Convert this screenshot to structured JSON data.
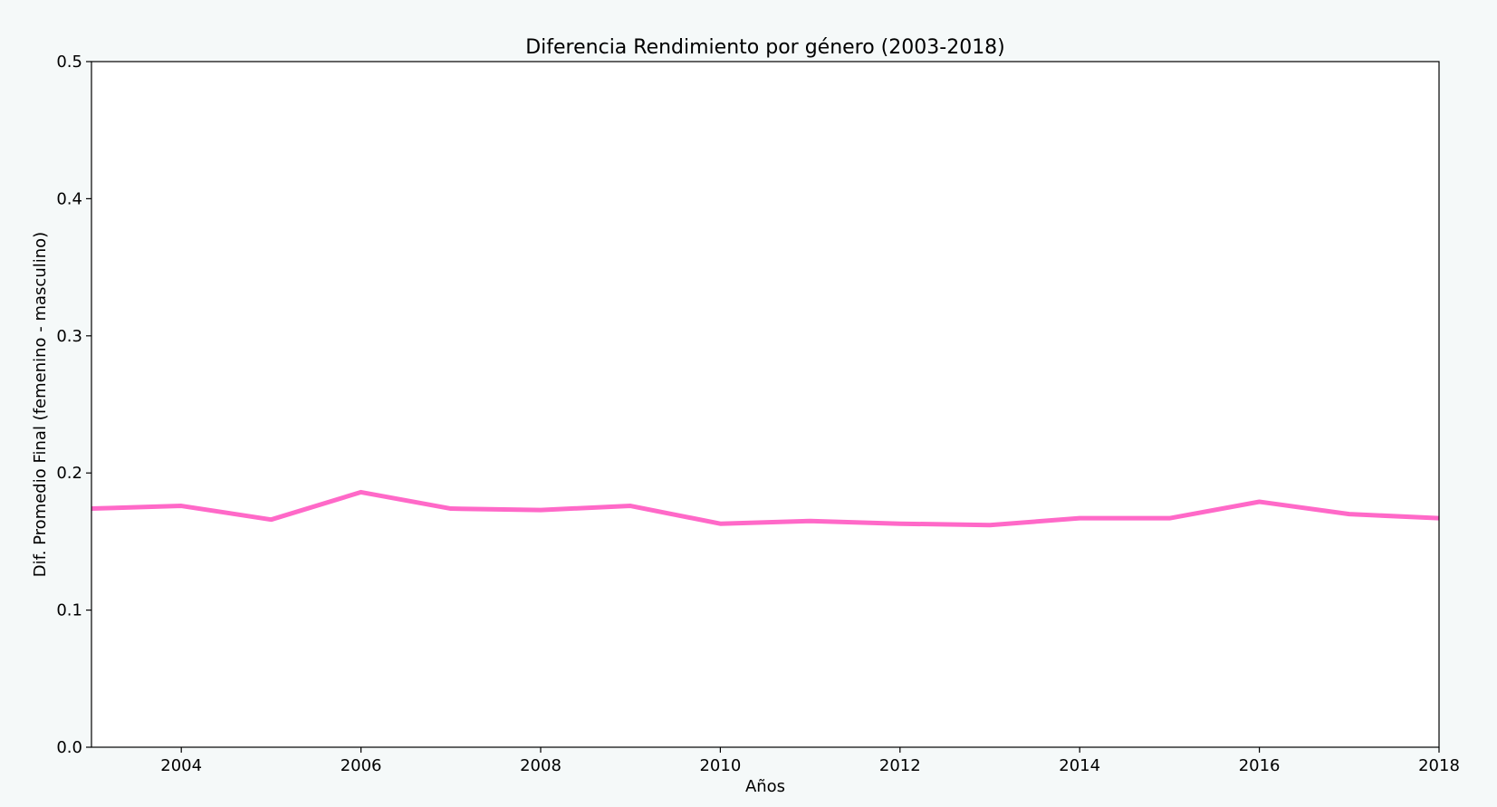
{
  "chart_data": {
    "type": "line",
    "title": "Diferencia Rendimiento por género (2003-2018)",
    "xlabel": "Años",
    "ylabel": "Dif. Promedio Final (femenino - masculino)",
    "xlim": [
      2003,
      2018
    ],
    "ylim": [
      0.0,
      0.5
    ],
    "xticks": [
      2004,
      2006,
      2008,
      2010,
      2012,
      2014,
      2016,
      2018
    ],
    "yticks": [
      0.0,
      0.1,
      0.2,
      0.3,
      0.4,
      0.5
    ],
    "ytick_labels": [
      "0.0",
      "0.1",
      "0.2",
      "0.3",
      "0.4",
      "0.5"
    ],
    "grid": false,
    "series": [
      {
        "color": "#ff69c8",
        "x": [
          2003,
          2004,
          2005,
          2006,
          2007,
          2008,
          2009,
          2010,
          2011,
          2012,
          2013,
          2014,
          2015,
          2016,
          2017,
          2018
        ],
        "values": [
          0.174,
          0.176,
          0.166,
          0.186,
          0.174,
          0.173,
          0.176,
          0.163,
          0.165,
          0.163,
          0.162,
          0.167,
          0.167,
          0.179,
          0.17,
          0.167
        ]
      }
    ]
  },
  "colors": {
    "page_background": "#f5f9f9",
    "plot_background": "#ffffff",
    "axis": "#000000"
  }
}
